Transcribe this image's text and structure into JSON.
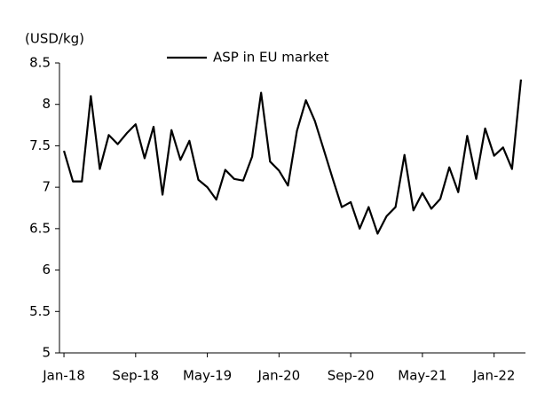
{
  "chart_data": {
    "type": "line",
    "y_axis_label": "(USD/kg)",
    "categories": [
      "Jan-18",
      null,
      null,
      null,
      null,
      null,
      null,
      null,
      "Sep-18",
      null,
      null,
      null,
      null,
      null,
      null,
      null,
      "May-19",
      null,
      null,
      null,
      null,
      null,
      null,
      null,
      "Jan-20",
      null,
      null,
      null,
      null,
      null,
      null,
      null,
      "Sep-20",
      null,
      null,
      null,
      null,
      null,
      null,
      null,
      "May-21",
      null,
      null,
      null,
      null,
      null,
      null,
      null,
      "Jan-22",
      null,
      null,
      null
    ],
    "series": [
      {
        "name": "ASP in EU market",
        "color": "#000000",
        "values": [
          7.44,
          7.07,
          7.07,
          8.1,
          7.22,
          7.63,
          7.52,
          7.65,
          7.76,
          7.35,
          7.73,
          6.91,
          7.69,
          7.33,
          7.56,
          7.09,
          7.0,
          6.85,
          7.21,
          7.1,
          7.08,
          7.37,
          8.14,
          7.31,
          7.2,
          7.02,
          7.68,
          8.05,
          7.8,
          7.45,
          7.1,
          6.76,
          6.82,
          6.5,
          6.76,
          6.44,
          6.65,
          6.76,
          7.39,
          6.72,
          6.93,
          6.74,
          6.86,
          7.24,
          6.94,
          7.62,
          7.1,
          7.71,
          7.38,
          7.48,
          7.22,
          8.3
        ]
      }
    ],
    "ylim": [
      5,
      8.5
    ],
    "yticks": [
      5,
      5.5,
      6,
      6.5,
      7,
      7.5,
      8,
      8.5
    ],
    "grid": false,
    "legend": "top"
  }
}
